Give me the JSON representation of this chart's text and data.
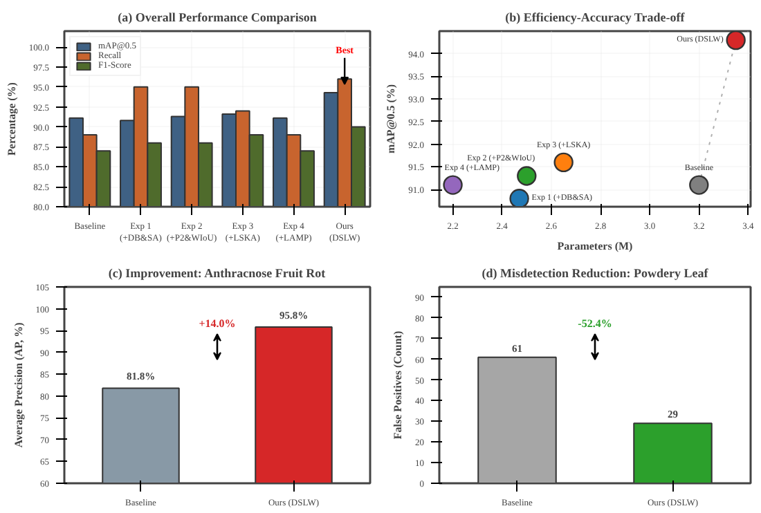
{
  "chart_data": [
    {
      "type": "bar",
      "title": "(a) Overall Performance Comparison",
      "ylabel": "Percentage (%)",
      "categories": [
        "Baseline",
        "Exp 1\n(+DB&SA)",
        "Exp 2\n(+P2&WIoU)",
        "Exp 3\n(+LSKA)",
        "Exp 4\n(+LAMP)",
        "Ours\n(DSLW)"
      ],
      "series": [
        {
          "name": "mAP@0.5",
          "color": "#3f6184",
          "values": [
            91.1,
            90.8,
            91.3,
            91.6,
            91.1,
            94.3
          ]
        },
        {
          "name": "Recall",
          "color": "#c8642e",
          "values": [
            89,
            95,
            95,
            92,
            89,
            96
          ]
        },
        {
          "name": "F1-Score",
          "color": "#4f6b2c",
          "values": [
            87,
            88,
            88,
            89,
            87,
            90
          ]
        }
      ],
      "ylim": [
        80,
        102
      ],
      "yticks": [
        {
          "value": 80,
          "label": "80.0"
        },
        82.5,
        {
          "value": 85,
          "label": "85.0"
        },
        87.5,
        {
          "value": 90,
          "label": "90.0"
        },
        92.5,
        {
          "value": 95,
          "label": "95.0"
        },
        97.5,
        {
          "value": 100,
          "label": "100.0"
        }
      ],
      "annotations": [
        {
          "text": "Best",
          "x": "Ours\n(DSLW)",
          "y": 96
        }
      ],
      "grid": true,
      "legend": "top left"
    },
    {
      "type": "scatter",
      "title": "(b) Efficiency-Accuracy Trade-off",
      "xlabel": "Parameters (M)",
      "ylabel": "mAP@0.5 (%)",
      "series": [
        {
          "type": "line",
          "color": "#b0b0b0",
          "x": [
            3.2,
            3.35
          ],
          "values": [
            91.1,
            94.3
          ],
          "line_style": "dotted"
        },
        {
          "type": "scatter",
          "x": [
            3.2,
            2.47,
            2.5,
            2.65,
            2.2,
            3.35
          ],
          "values": [
            91.1,
            90.8,
            91.3,
            91.6,
            91.1,
            94.3
          ],
          "colors": [
            "#808080",
            "#1f77b4",
            "#2ca02c",
            "#ff7f0e",
            "#9467bd",
            "#d62728"
          ],
          "marker": "circle"
        }
      ],
      "annotations": [
        {
          "text": "Baseline",
          "x": 3.2,
          "y": 91.1
        },
        {
          "text": "Exp 1 (+DB&SA)",
          "x": 2.47,
          "y": 90.8
        },
        {
          "text": "Exp 2 (+P2&WIoU)",
          "x": 2.5,
          "y": 91.3
        },
        {
          "text": "Exp 3 (+LSKA)",
          "x": 2.65,
          "y": 91.6
        },
        {
          "text": "Exp 4 (+LAMP)",
          "x": 2.2,
          "y": 91.1
        },
        {
          "text": "Ours (DSLW)",
          "x": 3.35,
          "y": 94.3
        }
      ],
      "xlim": [
        2.145,
        3.41
      ],
      "xticks": [
        2.2,
        2.4,
        2.6,
        2.8,
        {
          "value": 3.0,
          "label": "3.0"
        },
        3.2,
        3.4
      ],
      "ylim": [
        90.62,
        94.5
      ],
      "yticks": [
        {
          "value": 91,
          "label": "91.0"
        },
        91.5,
        {
          "value": 92,
          "label": "92.0"
        },
        92.5,
        {
          "value": 93,
          "label": "93.0"
        },
        93.5,
        {
          "value": 94,
          "label": "94.0"
        }
      ],
      "grid": true
    },
    {
      "type": "bar",
      "title": "(c) Improvement: Anthracnose Fruit Rot",
      "ylabel": "Average Precision (AP, %)",
      "categories": [
        "Baseline",
        "Ours (DSLW)"
      ],
      "values": [
        81.8,
        95.8
      ],
      "colors": [
        "#8899a6",
        "#d62728"
      ],
      "value_labels": [
        "81.8%",
        "95.8%"
      ],
      "annotations": [
        "+14.0%"
      ],
      "ylim": [
        60,
        105
      ],
      "yticks": [
        60,
        65,
        70,
        75,
        80,
        85,
        90,
        95,
        100,
        105
      ]
    },
    {
      "type": "bar",
      "title": "(d) Misdetection Reduction: Powdery Leaf",
      "ylabel": "False Positives (Count)",
      "categories": [
        "Baseline",
        "Ours (DSLW)"
      ],
      "values": [
        61,
        29
      ],
      "colors": [
        "#a6a6a6",
        "#2ca02c"
      ],
      "data_labels": true,
      "annotations": [
        "-52.4%"
      ],
      "ylim": [
        0,
        95
      ],
      "yticks": [
        0,
        10,
        20,
        30,
        40,
        50,
        60,
        70,
        80,
        90
      ]
    }
  ]
}
